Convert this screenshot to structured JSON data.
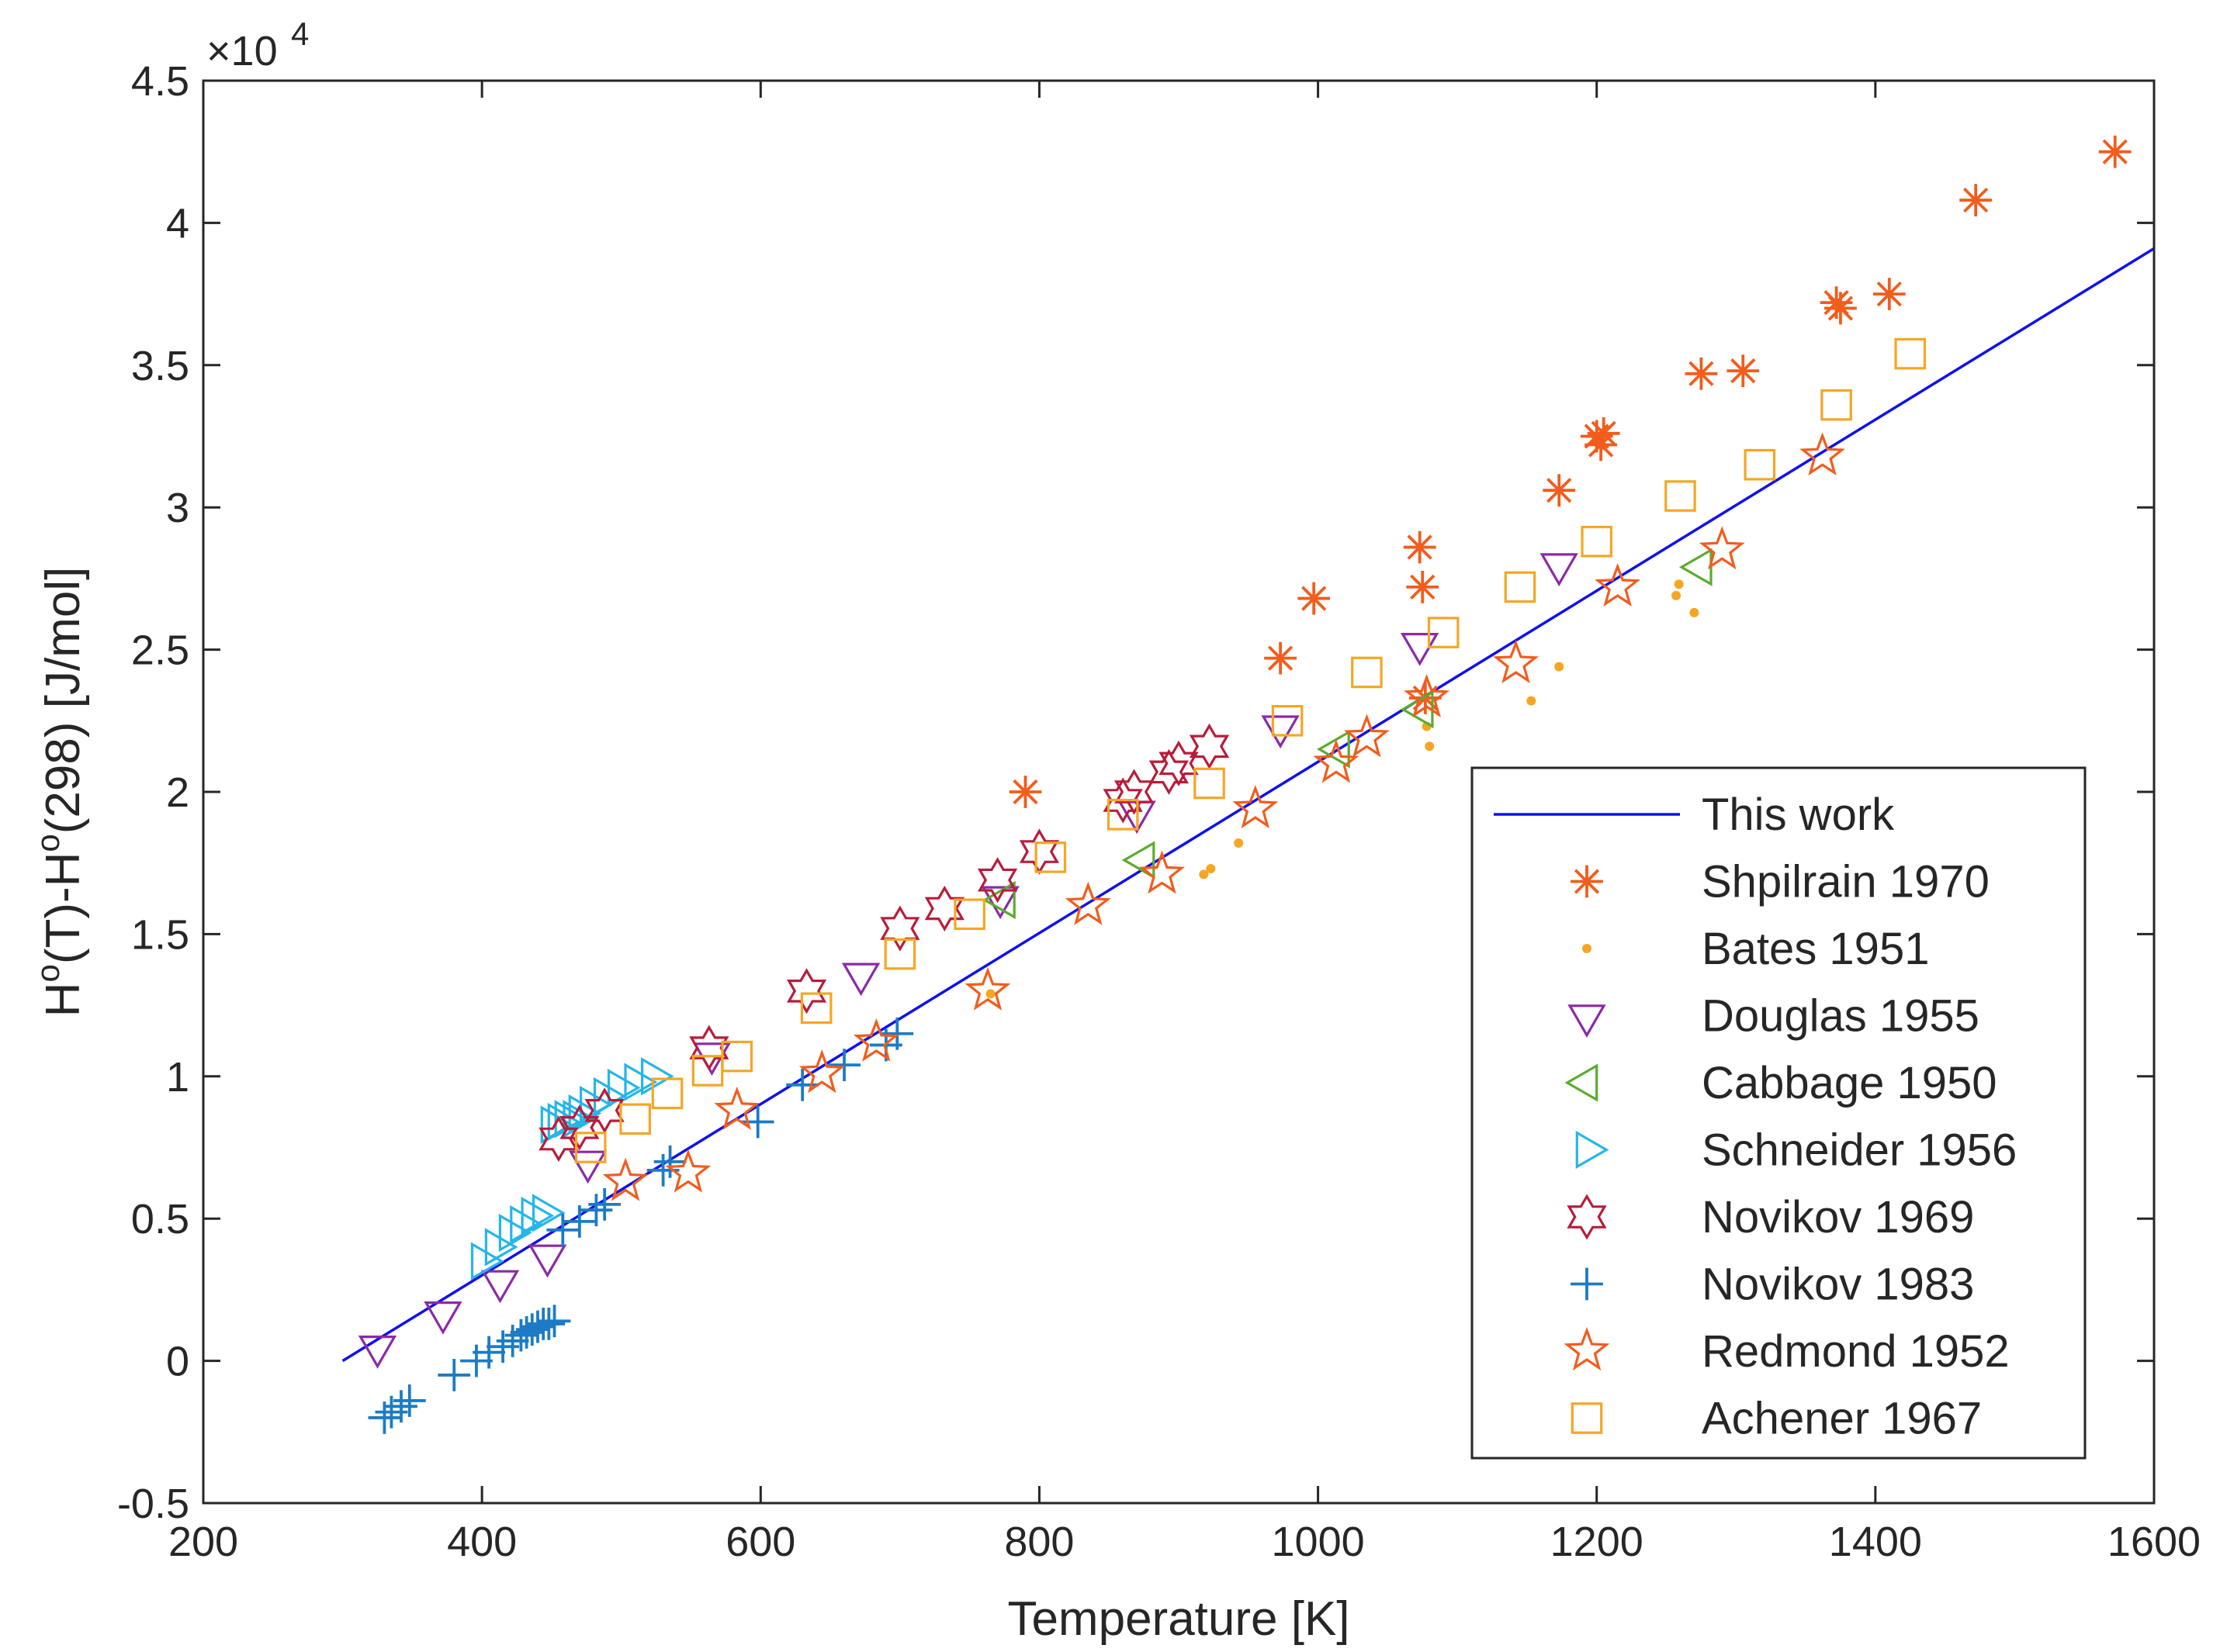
{
  "chart_data": {
    "type": "scatter",
    "xlabel": "Temperature [K]",
    "ylabel_parts": [
      "H",
      "o",
      "(T)-H",
      "o",
      "(298) [J/mol]"
    ],
    "xlim": [
      200,
      1600
    ],
    "ylim": [
      -5000,
      45000
    ],
    "x_ticks": [
      200,
      400,
      600,
      800,
      1000,
      1200,
      1400,
      1600
    ],
    "x_tick_labels": [
      "200",
      "400",
      "600",
      "800",
      "1000",
      "1200",
      "1400",
      "1600"
    ],
    "y_ticks": [
      -5000,
      0,
      5000,
      10000,
      15000,
      20000,
      25000,
      30000,
      35000,
      40000,
      45000
    ],
    "y_tick_labels": [
      "-0.5",
      "0",
      "0.5",
      "1",
      "1.5",
      "2",
      "2.5",
      "3",
      "3.5",
      "4",
      "4.5"
    ],
    "y_exponent": {
      "base": "×10",
      "power": "4"
    },
    "legend_position": "lower-right",
    "series": [
      {
        "name": "This work",
        "marker": "line",
        "color": "#1010ee",
        "x": [
          300,
          1600
        ],
        "y": [
          0,
          39100
        ]
      },
      {
        "name": "Shpilrain 1970",
        "marker": "asterisk",
        "color": "#f25c1c",
        "x": [
          790,
          973,
          997,
          1073,
          1075,
          1077,
          1173,
          1200,
          1203,
          1205,
          1275,
          1305,
          1372,
          1375,
          1410,
          1472,
          1572
        ],
        "y": [
          20000,
          24700,
          26800,
          28600,
          27200,
          23300,
          30600,
          32500,
          32200,
          32600,
          34700,
          34800,
          37200,
          37000,
          37500,
          40800,
          42500
        ]
      },
      {
        "name": "Bates 1951",
        "marker": "dot",
        "color": "#f5a623",
        "x": [
          765,
          918,
          923,
          943,
          1078,
          1080,
          1153,
          1173,
          1257,
          1259,
          1270
        ],
        "y": [
          12900,
          17100,
          17300,
          18200,
          22300,
          21600,
          23200,
          24400,
          26900,
          27300,
          26300
        ]
      },
      {
        "name": "Douglas 1955",
        "marker": "tri-down",
        "color": "#8b2aa8",
        "x": [
          325,
          372,
          413,
          447,
          476,
          565,
          672,
          772,
          870,
          973,
          1073,
          1173
        ],
        "y": [
          500,
          1700,
          2800,
          3700,
          7000,
          10800,
          13600,
          16300,
          19300,
          22300,
          25200,
          28000
        ]
      },
      {
        "name": "Cabbage 1950",
        "marker": "tri-left",
        "color": "#5aac2e",
        "x": [
          775,
          875,
          1015,
          1075,
          1275
        ],
        "y": [
          16200,
          17600,
          21500,
          22900,
          27900
        ]
      },
      {
        "name": "Schneider 1956",
        "marker": "tri-right",
        "color": "#25b6e8",
        "x": [
          400,
          410,
          420,
          428,
          436,
          444,
          450,
          455,
          460,
          466,
          470,
          478,
          488,
          498,
          510,
          522
        ],
        "y": [
          3500,
          4000,
          4500,
          4800,
          5100,
          5200,
          8300,
          8400,
          8500,
          8500,
          8700,
          9000,
          9300,
          9600,
          9800,
          10000
        ]
      },
      {
        "name": "Novikov 1969",
        "marker": "hexstar",
        "color": "#b81c3a",
        "x": [
          455,
          470,
          488,
          563,
          633,
          700,
          732,
          770,
          800,
          860,
          868,
          893,
          900,
          922
        ],
        "y": [
          7800,
          8200,
          8800,
          11000,
          13000,
          15200,
          15900,
          16900,
          17900,
          19700,
          20000,
          20700,
          21000,
          21600
        ]
      },
      {
        "name": "Novikov 1983",
        "marker": "plus",
        "color": "#1c7bc4",
        "x": [
          330,
          335,
          342,
          348,
          380,
          396,
          405,
          415,
          422,
          428,
          432,
          436,
          440,
          444,
          448,
          452,
          458,
          470,
          482,
          488,
          530,
          535,
          598,
          630,
          660,
          690,
          698
        ],
        "y": [
          -2000,
          -1800,
          -1600,
          -1400,
          -500,
          0,
          300,
          500,
          700,
          900,
          1000,
          1100,
          1200,
          1300,
          1300,
          1400,
          4600,
          4900,
          5300,
          5500,
          6700,
          7000,
          8400,
          9700,
          10400,
          11100,
          11500
        ]
      },
      {
        "name": "Redmond 1952",
        "marker": "star5",
        "color": "#f25c1c",
        "x": [
          503,
          548,
          583,
          644,
          683,
          763,
          835,
          888,
          955,
          1013,
          1035,
          1078,
          1142,
          1215,
          1290,
          1362
        ],
        "y": [
          6300,
          6600,
          8800,
          10100,
          11200,
          13000,
          16000,
          17100,
          19400,
          21000,
          21900,
          23300,
          24500,
          27200,
          28500,
          31800
        ]
      },
      {
        "name": "Achener 1967",
        "marker": "square",
        "color": "#f5a623",
        "x": [
          478,
          510,
          533,
          562,
          583,
          640,
          700,
          750,
          808,
          860,
          922,
          978,
          1035,
          1090,
          1145,
          1200,
          1260,
          1317,
          1372,
          1425
        ],
        "y": [
          7500,
          8500,
          9400,
          10200,
          10700,
          12400,
          14300,
          15700,
          17700,
          19200,
          20300,
          22500,
          24200,
          25600,
          27200,
          28800,
          30400,
          31500,
          33600,
          35400
        ]
      }
    ]
  }
}
